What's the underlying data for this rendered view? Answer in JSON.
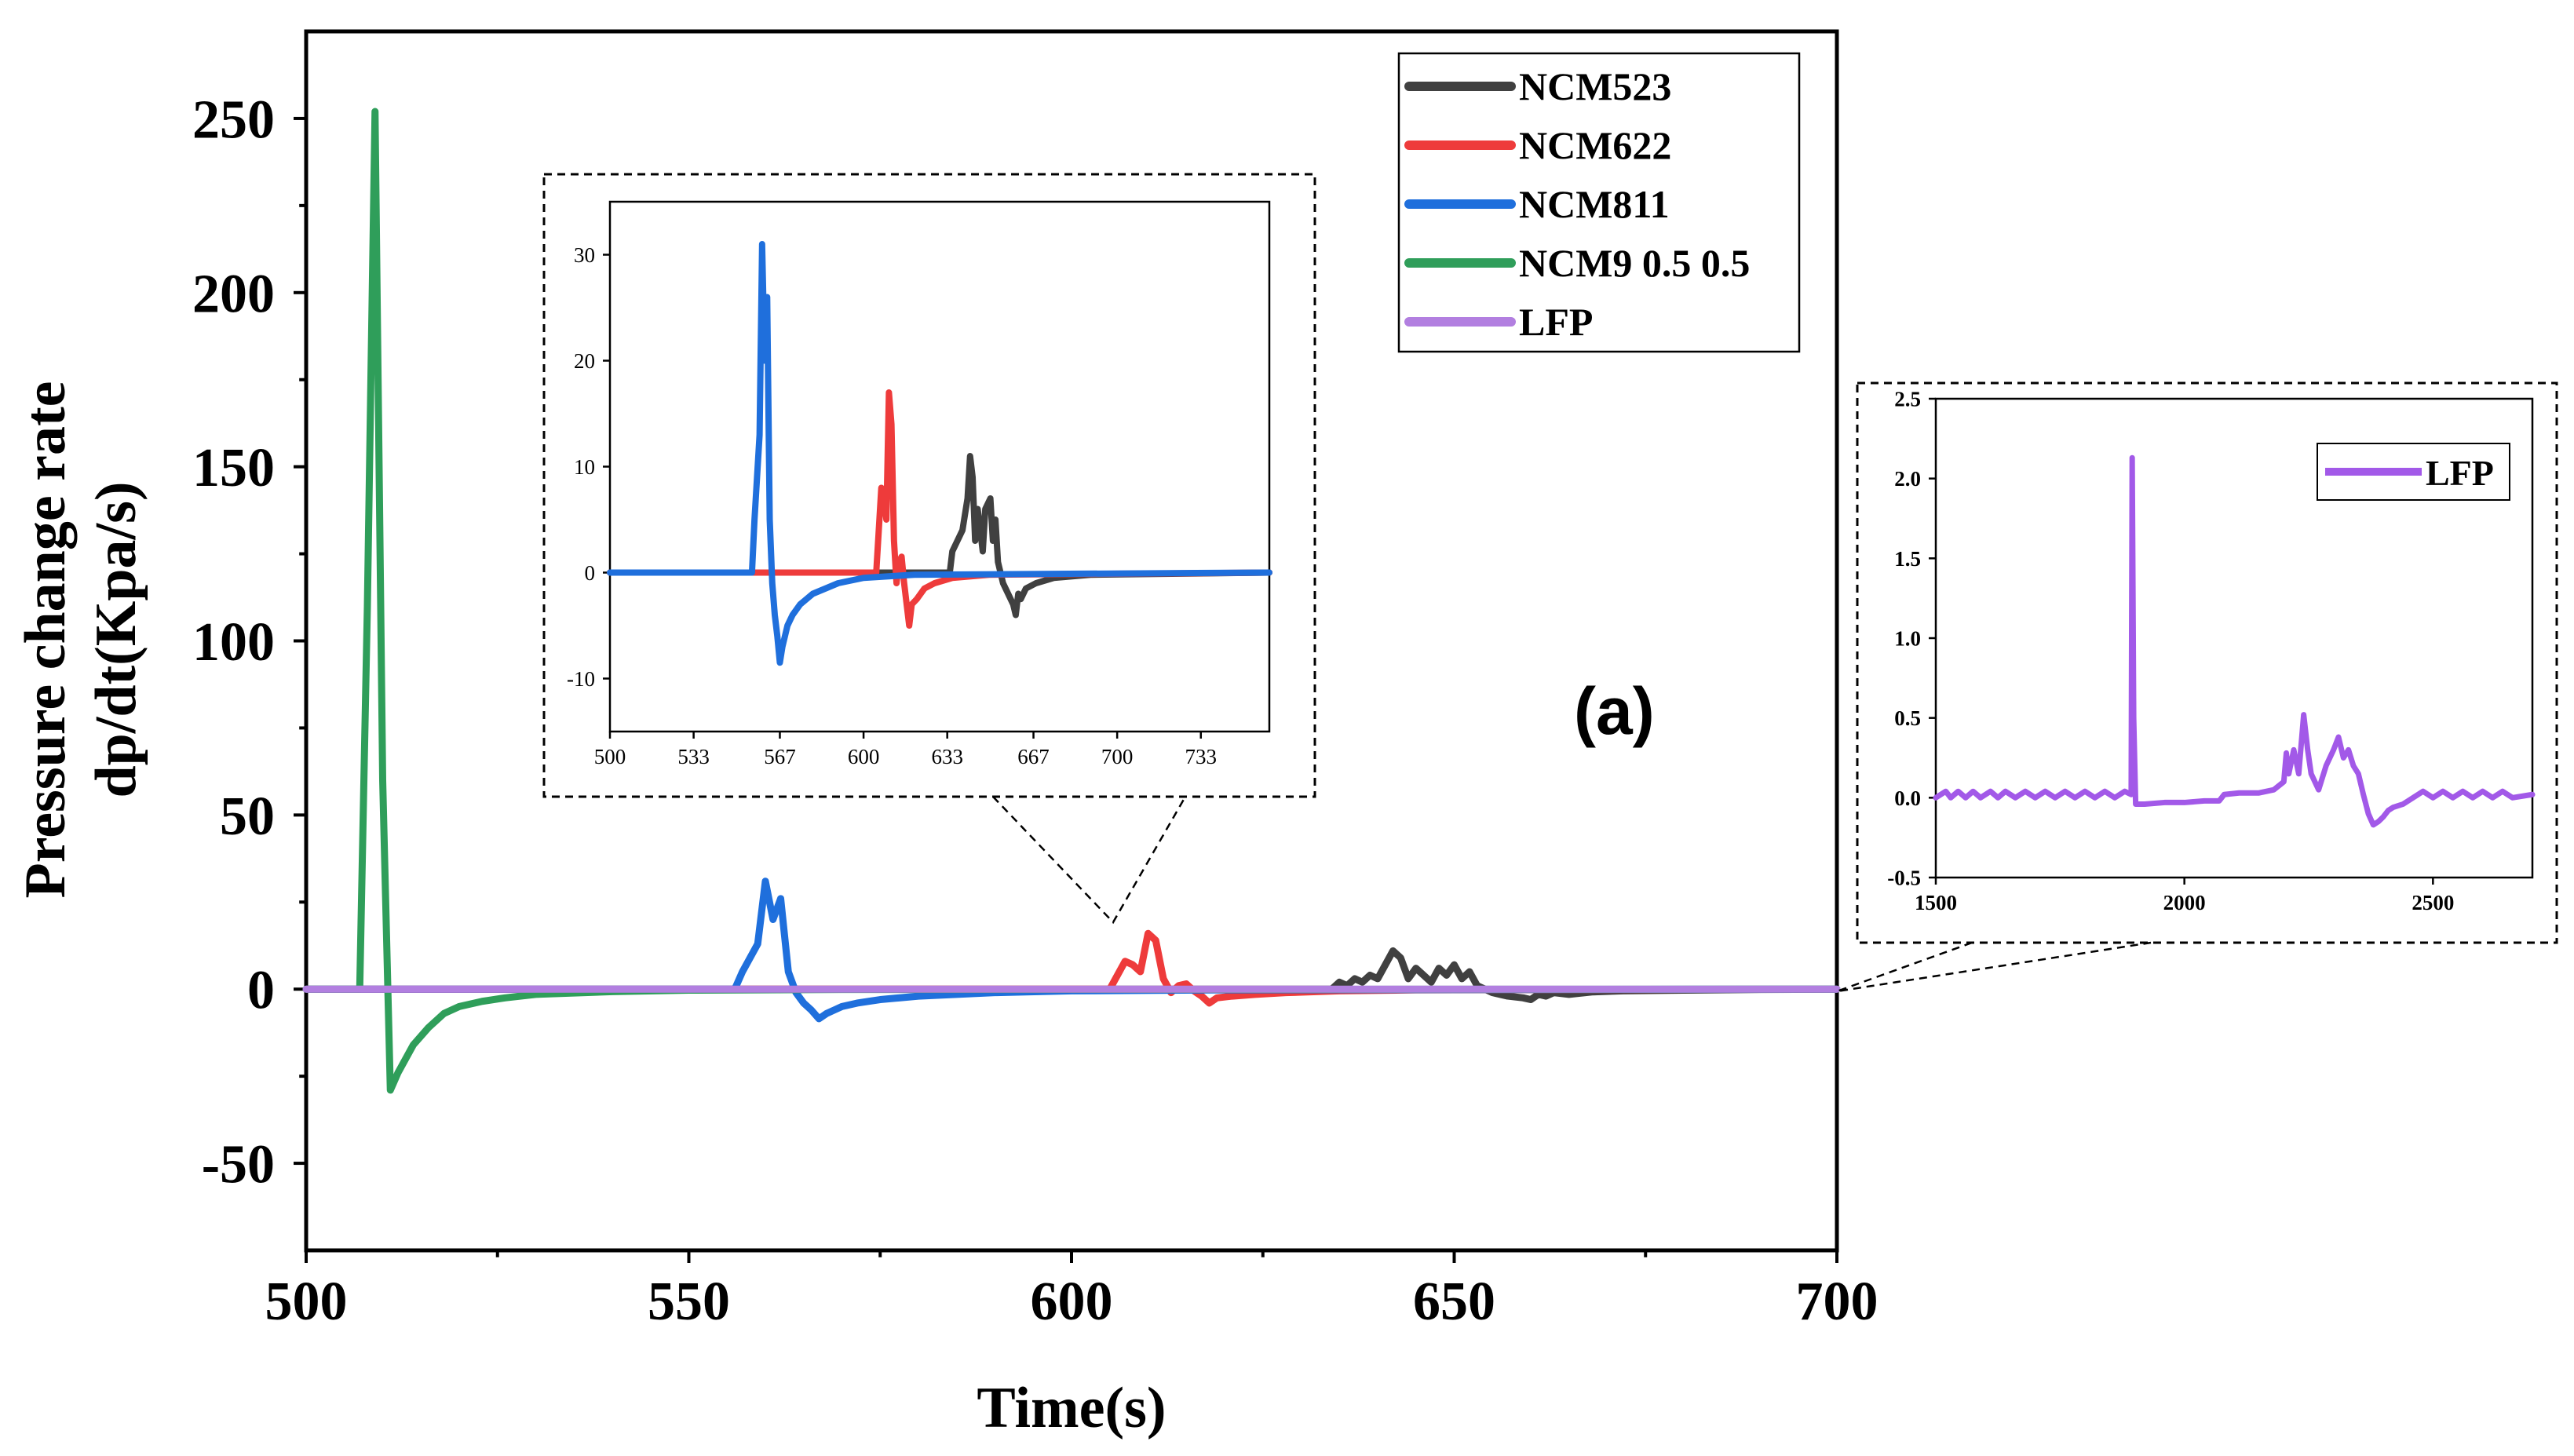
{
  "chart_data": [
    {
      "id": "main",
      "type": "line",
      "title": "",
      "xlabel": "Time(s)",
      "ylabel_lines": [
        "Pressure change rate",
        "dp/dt(Kpa/s)"
      ],
      "xlim": [
        500,
        700
      ],
      "ylim": [
        -75,
        275
      ],
      "xticks": [
        500,
        550,
        600,
        650,
        700
      ],
      "yticks": [
        -50,
        0,
        50,
        100,
        150,
        200,
        250
      ],
      "annotation": "(a)",
      "grid": false,
      "legend_position": "top-right",
      "series": [
        {
          "name": "NCM523",
          "color": "#404040",
          "points": [
            [
              500,
              0
            ],
            [
              634,
              0
            ],
            [
              635,
              2
            ],
            [
              636,
              1
            ],
            [
              637,
              3
            ],
            [
              638,
              2
            ],
            [
              639,
              4
            ],
            [
              640,
              3
            ],
            [
              641,
              7
            ],
            [
              642,
              11
            ],
            [
              643,
              9
            ],
            [
              644,
              3
            ],
            [
              645,
              6
            ],
            [
              646,
              4
            ],
            [
              647,
              2
            ],
            [
              648,
              6
            ],
            [
              649,
              4
            ],
            [
              650,
              7
            ],
            [
              651,
              3
            ],
            [
              652,
              5
            ],
            [
              653,
              1
            ],
            [
              654,
              0
            ],
            [
              655,
              -1
            ],
            [
              657,
              -2
            ],
            [
              659,
              -2.5
            ],
            [
              660,
              -3
            ],
            [
              661,
              -1.5
            ],
            [
              662,
              -2
            ],
            [
              663,
              -1
            ],
            [
              665,
              -1.5
            ],
            [
              668,
              -0.8
            ],
            [
              672,
              -0.5
            ],
            [
              680,
              -0.3
            ],
            [
              690,
              -0.1
            ],
            [
              700,
              0
            ]
          ]
        },
        {
          "name": "NCM622",
          "color": "#ee3b3b",
          "points": [
            [
              500,
              0
            ],
            [
              605,
              0
            ],
            [
              606,
              4
            ],
            [
              607,
              8
            ],
            [
              608,
              7
            ],
            [
              609,
              5
            ],
            [
              610,
              16
            ],
            [
              611,
              14
            ],
            [
              612,
              3
            ],
            [
              613,
              -1
            ],
            [
              614,
              1
            ],
            [
              615,
              1.5
            ],
            [
              616,
              -0.5
            ],
            [
              617,
              -2
            ],
            [
              618,
              -4
            ],
            [
              619,
              -2.5
            ],
            [
              621,
              -2
            ],
            [
              624,
              -1.5
            ],
            [
              628,
              -1
            ],
            [
              635,
              -0.5
            ],
            [
              645,
              -0.2
            ],
            [
              700,
              0
            ]
          ]
        },
        {
          "name": "NCM811",
          "color": "#1f6fdc",
          "points": [
            [
              500,
              0
            ],
            [
              556,
              0
            ],
            [
              557,
              5
            ],
            [
              558,
              9
            ],
            [
              559,
              13
            ],
            [
              560,
              31
            ],
            [
              561,
              20
            ],
            [
              562,
              26
            ],
            [
              563,
              5
            ],
            [
              564,
              -1
            ],
            [
              565,
              -4
            ],
            [
              566,
              -6
            ],
            [
              567,
              -8.5
            ],
            [
              568,
              -7
            ],
            [
              569,
              -6
            ],
            [
              570,
              -5
            ],
            [
              572,
              -4
            ],
            [
              575,
              -3
            ],
            [
              580,
              -2
            ],
            [
              590,
              -1
            ],
            [
              600,
              -0.5
            ],
            [
              620,
              -0.2
            ],
            [
              700,
              0
            ]
          ]
        },
        {
          "name": "NCM9 0.5 0.5",
          "color": "#2f9e5a",
          "points": [
            [
              500,
              0
            ],
            [
              507,
              0
            ],
            [
              508,
              110
            ],
            [
              509,
              252
            ],
            [
              510,
              60
            ],
            [
              511,
              -29
            ],
            [
              512,
              -24
            ],
            [
              514,
              -16
            ],
            [
              516,
              -11
            ],
            [
              518,
              -7
            ],
            [
              520,
              -5
            ],
            [
              523,
              -3.5
            ],
            [
              526,
              -2.5
            ],
            [
              530,
              -1.5
            ],
            [
              540,
              -0.7
            ],
            [
              550,
              -0.3
            ],
            [
              570,
              -0.1
            ],
            [
              700,
              0
            ]
          ]
        },
        {
          "name": "LFP",
          "color": "#b27fe0",
          "points": [
            [
              500,
              0
            ],
            [
              700,
              0
            ]
          ]
        }
      ]
    },
    {
      "id": "inset1",
      "type": "line",
      "title": "",
      "xlim": [
        500,
        760
      ],
      "ylim": [
        -15,
        35
      ],
      "xticks": [
        500,
        533,
        567,
        600,
        633,
        667,
        700,
        733
      ],
      "yticks": [
        -10,
        0,
        10,
        20,
        30
      ],
      "legend": false,
      "series": [
        {
          "name": "NCM523",
          "color": "#404040",
          "points": [
            [
              500,
              0
            ],
            [
              634,
              0
            ],
            [
              635,
              2
            ],
            [
              637,
              3
            ],
            [
              639,
              4
            ],
            [
              641,
              7
            ],
            [
              642,
              11
            ],
            [
              643,
              9
            ],
            [
              644,
              3
            ],
            [
              645,
              6
            ],
            [
              646,
              4
            ],
            [
              647,
              2
            ],
            [
              648,
              6
            ],
            [
              650,
              7
            ],
            [
              651,
              3
            ],
            [
              652,
              5
            ],
            [
              653,
              1
            ],
            [
              655,
              -1
            ],
            [
              657,
              -2
            ],
            [
              659,
              -3
            ],
            [
              660,
              -4
            ],
            [
              661,
              -2
            ],
            [
              662,
              -2.5
            ],
            [
              664,
              -1.5
            ],
            [
              668,
              -1
            ],
            [
              675,
              -0.5
            ],
            [
              690,
              -0.2
            ],
            [
              760,
              0
            ]
          ]
        },
        {
          "name": "NCM622",
          "color": "#ee3b3b",
          "points": [
            [
              500,
              0
            ],
            [
              605,
              0
            ],
            [
              606,
              4
            ],
            [
              607,
              8
            ],
            [
              608,
              7
            ],
            [
              609,
              5
            ],
            [
              610,
              17
            ],
            [
              611,
              14
            ],
            [
              612,
              3
            ],
            [
              613,
              -1
            ],
            [
              614,
              1
            ],
            [
              615,
              1.5
            ],
            [
              616,
              -1
            ],
            [
              617,
              -3
            ],
            [
              618,
              -5
            ],
            [
              619,
              -3
            ],
            [
              621,
              -2.5
            ],
            [
              624,
              -1.5
            ],
            [
              628,
              -1
            ],
            [
              635,
              -0.5
            ],
            [
              650,
              -0.2
            ],
            [
              760,
              0
            ]
          ]
        },
        {
          "name": "NCM811",
          "color": "#1f6fdc",
          "points": [
            [
              500,
              0
            ],
            [
              556,
              0
            ],
            [
              557,
              5
            ],
            [
              558,
              9
            ],
            [
              559,
              13
            ],
            [
              560,
              31
            ],
            [
              561,
              20
            ],
            [
              562,
              26
            ],
            [
              563,
              5
            ],
            [
              564,
              -1
            ],
            [
              565,
              -4
            ],
            [
              566,
              -6
            ],
            [
              567,
              -8.5
            ],
            [
              568,
              -7
            ],
            [
              569,
              -6
            ],
            [
              570,
              -5
            ],
            [
              572,
              -4
            ],
            [
              575,
              -3
            ],
            [
              580,
              -2
            ],
            [
              590,
              -1
            ],
            [
              600,
              -0.5
            ],
            [
              620,
              -0.2
            ],
            [
              760,
              0
            ]
          ]
        }
      ]
    },
    {
      "id": "inset2",
      "type": "line",
      "title": "",
      "xlim": [
        1500,
        2700
      ],
      "ylim": [
        -0.5,
        2.5
      ],
      "xticks": [
        1500,
        2000,
        2500
      ],
      "yticks": [
        -0.5,
        0.0,
        0.5,
        1.0,
        1.5,
        2.0,
        2.5
      ],
      "ytick_labels": [
        "-0.5",
        "0.0",
        "0.5",
        "1.0",
        "1.5",
        "2.0",
        "2.5"
      ],
      "legend_position": "top-right",
      "series": [
        {
          "name": "LFP",
          "color": "#a259e8",
          "points": [
            [
              1500,
              0
            ],
            [
              1520,
              0.04
            ],
            [
              1530,
              0
            ],
            [
              1545,
              0.04
            ],
            [
              1560,
              0
            ],
            [
              1575,
              0.04
            ],
            [
              1590,
              0
            ],
            [
              1610,
              0.04
            ],
            [
              1625,
              0
            ],
            [
              1640,
              0.04
            ],
            [
              1660,
              0
            ],
            [
              1680,
              0.04
            ],
            [
              1700,
              0
            ],
            [
              1720,
              0.04
            ],
            [
              1740,
              0
            ],
            [
              1760,
              0.04
            ],
            [
              1780,
              0
            ],
            [
              1800,
              0.04
            ],
            [
              1820,
              0
            ],
            [
              1840,
              0.04
            ],
            [
              1860,
              0
            ],
            [
              1880,
              0.04
            ],
            [
              1893,
              0.02
            ],
            [
              1895,
              2.13
            ],
            [
              1898,
              0.5
            ],
            [
              1902,
              -0.04
            ],
            [
              1920,
              -0.04
            ],
            [
              1960,
              -0.03
            ],
            [
              2000,
              -0.03
            ],
            [
              2040,
              -0.02
            ],
            [
              2070,
              -0.02
            ],
            [
              2080,
              0.02
            ],
            [
              2110,
              0.03
            ],
            [
              2150,
              0.03
            ],
            [
              2180,
              0.05
            ],
            [
              2200,
              0.1
            ],
            [
              2205,
              0.28
            ],
            [
              2210,
              0.15
            ],
            [
              2220,
              0.3
            ],
            [
              2230,
              0.15
            ],
            [
              2240,
              0.52
            ],
            [
              2248,
              0.3
            ],
            [
              2255,
              0.15
            ],
            [
              2270,
              0.05
            ],
            [
              2285,
              0.2
            ],
            [
              2300,
              0.3
            ],
            [
              2310,
              0.38
            ],
            [
              2320,
              0.25
            ],
            [
              2330,
              0.3
            ],
            [
              2340,
              0.2
            ],
            [
              2350,
              0.15
            ],
            [
              2360,
              0.02
            ],
            [
              2370,
              -0.1
            ],
            [
              2380,
              -0.17
            ],
            [
              2390,
              -0.15
            ],
            [
              2400,
              -0.12
            ],
            [
              2410,
              -0.08
            ],
            [
              2420,
              -0.06
            ],
            [
              2440,
              -0.04
            ],
            [
              2460,
              0
            ],
            [
              2480,
              0.04
            ],
            [
              2500,
              0
            ],
            [
              2520,
              0.04
            ],
            [
              2540,
              0
            ],
            [
              2560,
              0.04
            ],
            [
              2580,
              0
            ],
            [
              2600,
              0.04
            ],
            [
              2620,
              0
            ],
            [
              2640,
              0.04
            ],
            [
              2660,
              0
            ],
            [
              2700,
              0.02
            ]
          ]
        }
      ]
    }
  ]
}
